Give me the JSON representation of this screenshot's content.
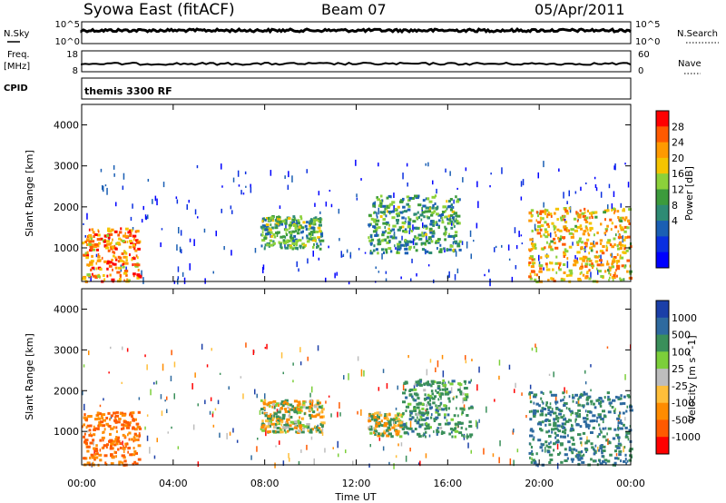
{
  "header": {
    "title": "Syowa East (fitACF)",
    "beam": "Beam 07",
    "date": "05/Apr/2011"
  },
  "status_panels": {
    "nsky": {
      "label": "N.Sky",
      "ticks": [
        "10^5",
        "10^0"
      ]
    },
    "nsearch": {
      "label": "N.Search",
      "ticks": [
        "10^5",
        "10^0"
      ]
    },
    "freq": {
      "label_line1": "Freq.",
      "label_line2": "[MHz]",
      "ticks": [
        "18",
        "8"
      ]
    },
    "nave": {
      "label": "Nave",
      "ticks": [
        "60",
        "0"
      ]
    },
    "cpid": {
      "label": "CPID",
      "value": "themis 3300 RF"
    }
  },
  "chart_data": [
    {
      "type": "heatmap",
      "panel": "power",
      "ylabel": "Slant Range [km]",
      "xlabel": "",
      "ylim": [
        180,
        4500
      ],
      "yticks": [
        "1000",
        "2000",
        "3000",
        "4000"
      ],
      "xticks": [
        "00:00",
        "04:00",
        "08:00",
        "12:00",
        "16:00",
        "20:00",
        "00:00"
      ],
      "colorbar": {
        "label": "Power [dB]",
        "ticks": [
          "28",
          "24",
          "20",
          "16",
          "12",
          "8",
          "4"
        ],
        "colors": [
          "#ff0000",
          "#ff5a00",
          "#ff9a00",
          "#f5c400",
          "#8cd13a",
          "#3c9b3c",
          "#2e8b74",
          "#1a5fb4",
          "#0a2fe0",
          "#0000ff"
        ]
      },
      "echo_regions": [
        {
          "t_start": 0.0,
          "t_end": 2.5,
          "r_min": 200,
          "r_max": 1500,
          "level": 0.8
        },
        {
          "t_start": 7.8,
          "t_end": 10.5,
          "r_min": 1000,
          "r_max": 1800,
          "level": 0.45
        },
        {
          "t_start": 12.5,
          "t_end": 16.5,
          "r_min": 900,
          "r_max": 2300,
          "level": 0.4
        },
        {
          "t_start": 19.5,
          "t_end": 24.0,
          "r_min": 200,
          "r_max": 2000,
          "level": 0.7
        }
      ]
    },
    {
      "type": "heatmap",
      "panel": "velocity",
      "ylabel": "Slant Range [km]",
      "xlabel": "Time UT",
      "ylim": [
        180,
        4500
      ],
      "yticks": [
        "1000",
        "2000",
        "3000",
        "4000"
      ],
      "xticks": [
        "00:00",
        "04:00",
        "08:00",
        "12:00",
        "16:00",
        "20:00",
        "00:00"
      ],
      "colorbar": {
        "label": "Velocity [m s^-1]",
        "ticks": [
          "1000",
          "500",
          "100",
          "25",
          "-25",
          "-100",
          "-500",
          "-1000"
        ],
        "colors": [
          "#1b3fa8",
          "#2e6a9f",
          "#3a8f5a",
          "#7ccf3a",
          "#bdbdbd",
          "#ffbf3a",
          "#ff8c00",
          "#ff5a00",
          "#ff0000"
        ]
      },
      "echo_regions": [
        {
          "t_start": 0.0,
          "t_end": 2.5,
          "r_min": 200,
          "r_max": 1500,
          "velocity": -500
        },
        {
          "t_start": 7.8,
          "t_end": 10.5,
          "r_min": 1000,
          "r_max": 1800,
          "velocity": 0
        },
        {
          "t_start": 12.5,
          "t_end": 14.0,
          "r_min": 900,
          "r_max": 1500,
          "velocity": 0
        },
        {
          "t_start": 14.0,
          "t_end": 17.0,
          "r_min": 900,
          "r_max": 2300,
          "velocity": 300
        },
        {
          "t_start": 19.5,
          "t_end": 24.0,
          "r_min": 200,
          "r_max": 2000,
          "velocity": 500
        }
      ]
    }
  ]
}
